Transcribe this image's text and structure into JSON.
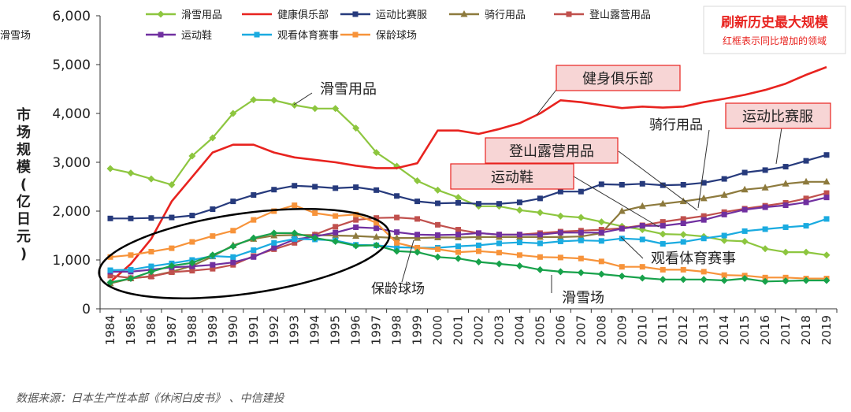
{
  "chart_data": {
    "type": "line",
    "title": "",
    "xlabel": "",
    "ylabel": "市场规模(亿日元)",
    "ylim": [
      0,
      6000
    ],
    "yticks": [
      0,
      1000,
      2000,
      3000,
      4000,
      5000,
      6000
    ],
    "ytick_labels": [
      "0",
      "1,000",
      "2,000",
      "3,000",
      "4,000",
      "5,000",
      "6,000"
    ],
    "categories": [
      "1984",
      "1985",
      "1986",
      "1987",
      "1988",
      "1989",
      "1990",
      "1991",
      "1992",
      "1993",
      "1994",
      "1995",
      "1996",
      "1997",
      "1998",
      "1999",
      "2000",
      "2001",
      "2002",
      "2003",
      "2004",
      "2005",
      "2006",
      "2007",
      "2008",
      "2009",
      "2010",
      "2011",
      "2012",
      "2013",
      "2014",
      "2015",
      "2016",
      "2017",
      "2018",
      "2019"
    ],
    "series": [
      {
        "name": "滑雪用品",
        "color": "#8dc63f",
        "marker": "diamond",
        "values": [
          2870,
          2780,
          2660,
          2540,
          3130,
          3500,
          4000,
          4280,
          4270,
          4170,
          4100,
          4100,
          3700,
          3200,
          2920,
          2620,
          2430,
          2280,
          2100,
          2100,
          2020,
          1970,
          1900,
          1870,
          1780,
          1690,
          1620,
          1530,
          1520,
          1480,
          1400,
          1380,
          1230,
          1160,
          1160,
          1100
        ]
      },
      {
        "name": "健康俱乐部",
        "color": "#e8231f",
        "marker": "line",
        "values": [
          550,
          920,
          1430,
          2200,
          2700,
          3200,
          3360,
          3360,
          3200,
          3100,
          3050,
          3000,
          2930,
          2880,
          2880,
          2980,
          3650,
          3650,
          3580,
          3680,
          3800,
          4000,
          4270,
          4230,
          4170,
          4110,
          4140,
          4120,
          4140,
          4230,
          4300,
          4380,
          4480,
          4610,
          4790,
          4950
        ]
      },
      {
        "name": "运动比赛服",
        "color": "#263a7c",
        "marker": "square",
        "values": [
          1850,
          1850,
          1860,
          1870,
          1910,
          2040,
          2200,
          2330,
          2440,
          2520,
          2500,
          2470,
          2490,
          2430,
          2310,
          2200,
          2160,
          2170,
          2150,
          2150,
          2180,
          2260,
          2400,
          2400,
          2550,
          2540,
          2560,
          2530,
          2540,
          2580,
          2660,
          2790,
          2840,
          2910,
          3030,
          3150
        ]
      },
      {
        "name": "骑行用品",
        "color": "#8d7a3d",
        "marker": "triangle",
        "values": [
          520,
          620,
          670,
          760,
          880,
          1070,
          1300,
          1430,
          1500,
          1510,
          1510,
          1500,
          1490,
          1470,
          1450,
          1450,
          1460,
          1460,
          1470,
          1470,
          1470,
          1470,
          1470,
          1480,
          1550,
          2000,
          2100,
          2150,
          2200,
          2260,
          2330,
          2440,
          2480,
          2560,
          2600,
          2600
        ]
      },
      {
        "name": "登山露营用品",
        "color": "#c0504d",
        "marker": "square",
        "values": [
          680,
          630,
          660,
          750,
          780,
          820,
          900,
          1080,
          1220,
          1350,
          1520,
          1680,
          1820,
          1860,
          1870,
          1840,
          1720,
          1620,
          1550,
          1520,
          1520,
          1550,
          1580,
          1600,
          1620,
          1650,
          1710,
          1780,
          1840,
          1900,
          1980,
          2050,
          2110,
          2170,
          2260,
          2370
        ]
      },
      {
        "name": "运动鞋",
        "color": "#7030a0",
        "marker": "square",
        "values": [
          760,
          760,
          800,
          850,
          870,
          900,
          950,
          1060,
          1250,
          1420,
          1480,
          1560,
          1670,
          1650,
          1570,
          1520,
          1510,
          1520,
          1550,
          1520,
          1520,
          1520,
          1560,
          1560,
          1560,
          1640,
          1700,
          1700,
          1750,
          1820,
          1930,
          2030,
          2080,
          2120,
          2180,
          2280
        ]
      },
      {
        "name": "观看体育赛事",
        "color": "#1aabe0",
        "marker": "square",
        "values": [
          790,
          800,
          870,
          930,
          1000,
          1080,
          1060,
          1200,
          1350,
          1430,
          1420,
          1400,
          1310,
          1300,
          1260,
          1250,
          1250,
          1280,
          1300,
          1340,
          1360,
          1340,
          1380,
          1400,
          1390,
          1440,
          1420,
          1330,
          1370,
          1440,
          1500,
          1590,
          1630,
          1670,
          1700,
          1840
        ]
      },
      {
        "name": "保龄球场",
        "color": "#f7933a",
        "marker": "square",
        "values": [
          1060,
          1100,
          1170,
          1240,
          1370,
          1490,
          1600,
          1820,
          2000,
          2120,
          1960,
          1900,
          1930,
          1760,
          1350,
          1250,
          1220,
          1160,
          1180,
          1150,
          1100,
          1060,
          1050,
          1030,
          970,
          860,
          860,
          800,
          800,
          760,
          690,
          680,
          640,
          640,
          620,
          620
        ]
      },
      {
        "name": "滑雪场",
        "color": "#18a24b",
        "marker": "diamond",
        "values": [
          540,
          620,
          760,
          880,
          940,
          1100,
          1280,
          1450,
          1550,
          1550,
          1450,
          1380,
          1290,
          1300,
          1180,
          1160,
          1060,
          1030,
          960,
          920,
          880,
          800,
          760,
          740,
          710,
          670,
          630,
          600,
          600,
          600,
          580,
          620,
          560,
          570,
          580,
          580
        ]
      }
    ],
    "annotations": {
      "record_title": "刷新历史最大规模",
      "record_note": "红框表示同比增加的领域",
      "callouts": [
        "健身俱乐部",
        "运动比赛服",
        "登山露营用品",
        "运动鞋",
        "滑雪用品",
        "骑行用品",
        "观看体育赛事",
        "保龄球场",
        "滑雪场"
      ]
    }
  },
  "source": "数据来源：日本生产性本部《休闲白皮书》 、中信建投"
}
